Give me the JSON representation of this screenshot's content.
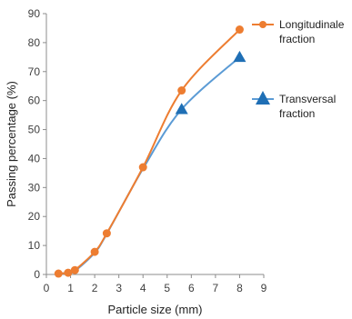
{
  "chart_data": {
    "type": "line",
    "xlabel": "Particle size (mm)",
    "ylabel": "Passing percentage (%)",
    "xlim": [
      0,
      9
    ],
    "ylim": [
      0,
      90
    ],
    "x_ticks": [
      "0",
      "1",
      "2",
      "3",
      "4",
      "5",
      "6",
      "7",
      "8",
      "9"
    ],
    "y_ticks": [
      "0",
      "10",
      "20",
      "30",
      "40",
      "50",
      "60",
      "70",
      "80",
      "90"
    ],
    "grid": false,
    "legend_position": "right",
    "series": [
      {
        "name": "Longitudinale fraction",
        "legend_lines": [
          "Longitudinale",
          "fraction"
        ],
        "color": "#ED7D31",
        "marker": "circle",
        "x": [
          0.5,
          0.9,
          1.18,
          2.0,
          2.5,
          4.0,
          5.6,
          8.0
        ],
        "y": [
          0.3,
          0.6,
          1.5,
          7.8,
          14.2,
          37.0,
          63.5,
          84.5
        ]
      },
      {
        "name": "Transversal fraction",
        "legend_lines": [
          "Transversal",
          "fraction"
        ],
        "color": "#5B9BD5",
        "marker_color": "#1F6FB5",
        "marker": "triangle",
        "x": [
          0.5,
          0.9,
          1.18,
          2.0,
          2.5,
          4.0,
          5.6,
          8.0
        ],
        "y": [
          0.3,
          0.6,
          1.2,
          7.5,
          14.0,
          36.5,
          57.0,
          75.0
        ]
      }
    ]
  }
}
